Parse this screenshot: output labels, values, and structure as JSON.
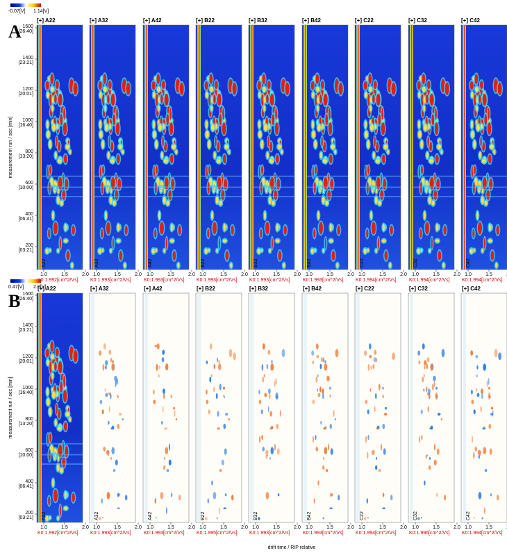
{
  "figure": {
    "panels": [
      {
        "letter": "A",
        "colorbar": {
          "min_label": "-0.07[V]",
          "max_label": "1.14[V]"
        },
        "y_axis_label": "measurement run / sec [min]",
        "y_ticks": [
          {
            "label": "1600",
            "time": "[26:40]"
          },
          {
            "label": "1400",
            "time": "[23:21]"
          },
          {
            "label": "1200",
            "time": "[20:01]"
          },
          {
            "label": "1000",
            "time": "[16:40]"
          },
          {
            "label": "800",
            "time": "[13:20]"
          },
          {
            "label": "600",
            "time": "[10:00]"
          },
          {
            "label": "400",
            "time": "[06:41]"
          },
          {
            "label": "200",
            "time": "[03:21]"
          }
        ],
        "x_ticks": [
          "1.0",
          "1.5",
          "2.0"
        ],
        "subplots": [
          {
            "title": "[+] A22",
            "side_label": "A22",
            "k0": "K0:1.992[cm^2/Vs]"
          },
          {
            "title": "[+] A32",
            "side_label": "A32",
            "k0": "K0:1.993[cm^2/Vs]"
          },
          {
            "title": "[+] A42",
            "side_label": "A42",
            "k0": "K0:1.993[cm^2/Vs]"
          },
          {
            "title": "[+] B22",
            "side_label": "B22",
            "k0": "K0:1.993[cm^2/Vs]"
          },
          {
            "title": "[+] B32",
            "side_label": "B32",
            "k0": "K0:1.993[cm^2/Vs]"
          },
          {
            "title": "[+] B42",
            "side_label": "B42",
            "k0": "K0:1.993[cm^2/Vs]"
          },
          {
            "title": "[+] C22",
            "side_label": "C22",
            "k0": "K0:1.994[cm^2/Vs]"
          },
          {
            "title": "[+] C32",
            "side_label": "C32",
            "k0": "K0:1.994[cm^2/Vs]"
          },
          {
            "title": "[+] C42",
            "side_label": "C42",
            "k0": "K0:1.994[cm^2/Vs]"
          }
        ]
      },
      {
        "letter": "B",
        "colorbar": {
          "min_label": "0.47[V]",
          "max_label": "2.0[V]"
        },
        "y_axis_label": "measurement run / sec [min]",
        "x_axis_label": "drift time / RIP relative",
        "y_ticks": [
          {
            "label": "1600",
            "time": "[26:40]"
          },
          {
            "label": "1400",
            "time": "[23:21]"
          },
          {
            "label": "1200",
            "time": "[20:01]"
          },
          {
            "label": "1000",
            "time": "[16:40]"
          },
          {
            "label": "800",
            "time": "[13:20]"
          },
          {
            "label": "600",
            "time": "[10:00]"
          },
          {
            "label": "400",
            "time": "[06:41]"
          },
          {
            "label": "200",
            "time": "[03:21]"
          }
        ],
        "x_ticks": [
          "1.0",
          "1.5",
          "2.0"
        ],
        "subplots": [
          {
            "title": "[+] A22",
            "side_label": "A22",
            "k0": "K0:1.992[cm^2/Vs]"
          },
          {
            "title": "[+] A32",
            "side_label": "A32",
            "k0": "K0:1.993[cm^2/Vs]"
          },
          {
            "title": "[+] A42",
            "side_label": "A42",
            "k0": "K0:1.993[cm^2/Vs]"
          },
          {
            "title": "[+] B22",
            "side_label": "B22",
            "k0": "K0:1.995[cm^2/Vs]"
          },
          {
            "title": "[+] B32",
            "side_label": "B32",
            "k0": "K0:1.993[cm^2/Vs]"
          },
          {
            "title": "[+] B42",
            "side_label": "B42",
            "k0": "K0:1.993[cm^2/Vs]"
          },
          {
            "title": "[+] C22",
            "side_label": "C22",
            "k0": "K0:1.994[cm^2/Vs]"
          },
          {
            "title": "[+] C32",
            "side_label": "C32",
            "k0": "K0:1.996[cm^2/Vs]"
          },
          {
            "title": "[+] C42",
            "side_label": "C42",
            "k0": "K0:1.994[cm^2/Vs]"
          }
        ]
      }
    ]
  }
}
